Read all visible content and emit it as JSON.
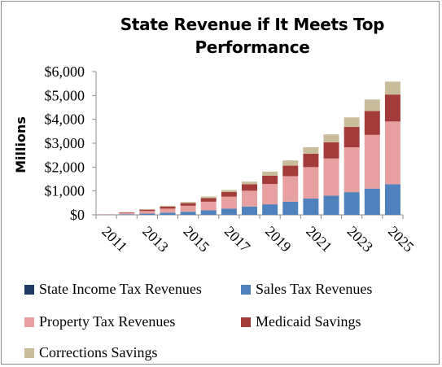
{
  "chart_data": {
    "type": "bar",
    "stacked": true,
    "title": "State Revenue if It Meets Top Performance",
    "ylabel": "Millions",
    "xlabel": "",
    "ylim": [
      0,
      6000
    ],
    "yticks": [
      0,
      1000,
      2000,
      3000,
      4000,
      5000,
      6000
    ],
    "ytick_labels": [
      "$0",
      "$1,000",
      "$2,000",
      "$3,000",
      "$4,000",
      "$5,000",
      "$6,000"
    ],
    "categories": [
      "2011",
      "2012",
      "2013",
      "2014",
      "2015",
      "2016",
      "2017",
      "2018",
      "2019",
      "2020",
      "2021",
      "2022",
      "2023",
      "2024",
      "2025"
    ],
    "xtick_labels_shown": [
      "2011",
      "2013",
      "2015",
      "2017",
      "2019",
      "2021",
      "2023",
      "2025"
    ],
    "grid": false,
    "legend_position": "bottom",
    "series": [
      {
        "name": "State Income Tax Revenues",
        "color": "#1f3864",
        "values": [
          0,
          0,
          0,
          0,
          0,
          0,
          0,
          0,
          0,
          0,
          0,
          0,
          0,
          0,
          0
        ]
      },
      {
        "name": "Sales Tax Revenues",
        "color": "#4f81bd",
        "values": [
          5,
          25,
          50,
          90,
          130,
          190,
          260,
          350,
          440,
          550,
          680,
          800,
          950,
          1100,
          1280
        ]
      },
      {
        "name": "Property Tax Revenues",
        "color": "#e6a0a0",
        "values": [
          10,
          50,
          110,
          170,
          250,
          360,
          500,
          660,
          850,
          1070,
          1320,
          1560,
          1880,
          2250,
          2630
        ]
      },
      {
        "name": "Medicaid Savings",
        "color": "#a33b3b",
        "values": [
          5,
          25,
          55,
          80,
          110,
          150,
          200,
          270,
          350,
          440,
          560,
          680,
          850,
          1000,
          1130
        ]
      },
      {
        "name": "Corrections Savings",
        "color": "#c8bc9a",
        "values": [
          3,
          12,
          25,
          40,
          50,
          65,
          80,
          110,
          170,
          220,
          270,
          330,
          400,
          480,
          540
        ]
      }
    ]
  }
}
